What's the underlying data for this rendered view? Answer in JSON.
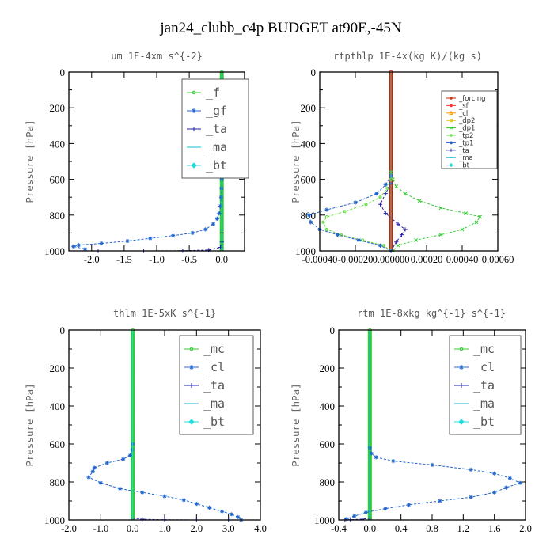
{
  "figure": {
    "title": "jan24_clubb_c4p  BUDGET at90E,-45N"
  },
  "colors": {
    "green": "#33cc33",
    "blue": "#2266cc",
    "darkblue": "#2222aa",
    "cyan": "#11bbcc",
    "aqua": "#22dddd",
    "red": "#cc2200",
    "orange": "#ff9900",
    "yellow": "#ddbb00"
  },
  "chart_data": [
    {
      "type": "line",
      "title": "um  1E-4xm s^{-2}",
      "ylabel": "Pressure [hPa]",
      "ylim": [
        1000,
        0
      ],
      "xlim": [
        -2.35,
        0.35
      ],
      "yticks": [
        "0",
        "200",
        "400",
        "600",
        "800",
        "1000"
      ],
      "xticks": [
        "-2.0",
        "-1.5",
        "-1.0",
        "-0.5",
        "0.0"
      ],
      "xtick_values": [
        -2.0,
        -1.5,
        -1.0,
        -0.5,
        0.0
      ],
      "legend_position": "top-right",
      "legend": [
        "_f",
        "_gf",
        "_ta",
        "_ma",
        "_bt"
      ],
      "series": [
        {
          "name": "_f",
          "color": "#33cc33",
          "marker": "circle",
          "x": [
            0,
            0,
            0,
            0,
            0,
            0,
            0,
            0,
            0,
            0,
            0
          ],
          "y": [
            0,
            100,
            200,
            300,
            400,
            500,
            600,
            700,
            800,
            900,
            1000
          ]
        },
        {
          "name": "_gf",
          "color": "#2266cc",
          "marker": "star",
          "x": [
            0,
            -0.005,
            -0.01,
            -0.02,
            -0.04,
            -0.07,
            -0.13,
            -0.25,
            -0.45,
            -0.75,
            -1.1,
            -1.45,
            -1.85,
            -2.2,
            -2.28,
            -2.1
          ],
          "y": [
            600,
            650,
            700,
            750,
            790,
            820,
            850,
            880,
            900,
            915,
            930,
            945,
            958,
            968,
            975,
            990
          ]
        },
        {
          "name": "_ta",
          "color": "#2222aa",
          "marker": "plus",
          "x": [
            0,
            0,
            -0.02,
            -0.2,
            -0.6,
            -1.2,
            -1.9
          ],
          "y": [
            900,
            950,
            980,
            995,
            999,
            1000,
            1000
          ]
        },
        {
          "name": "_ma",
          "color": "#11bbcc",
          "marker": "dash",
          "x": [
            0,
            0,
            0
          ],
          "y": [
            900,
            950,
            1000
          ]
        },
        {
          "name": "_bt",
          "color": "#22dddd",
          "marker": "diamond",
          "x": [
            0,
            0,
            0,
            0,
            0,
            0
          ],
          "y": [
            0,
            200,
            400,
            600,
            800,
            1000
          ]
        }
      ]
    },
    {
      "type": "line",
      "title": "rtpthlp  1E-4x(kg K)/(kg s)",
      "ylabel": "Pressure [hPa]",
      "ylim": [
        1000,
        0
      ],
      "xlim": [
        -0.0004,
        0.0006
      ],
      "yticks": [
        "0",
        "200",
        "400",
        "600",
        "800",
        "1000"
      ],
      "xticks": [
        "-0.00040",
        "-0.00020",
        "0.000000",
        "0.00020",
        "0.00040",
        "0.00060"
      ],
      "xtick_values": [
        -0.0004,
        -0.0002,
        0.0,
        0.0002,
        0.0004,
        0.0006
      ],
      "legend_position": "top-right",
      "legend": [
        "_forcing",
        "_sf",
        "_cl",
        "_dp2",
        "_dp1",
        "_tp2",
        "_tp1",
        "_ta",
        "_ma",
        "_bt"
      ],
      "series": [
        {
          "name": "_forcing",
          "color": "#cc2200",
          "marker": "circle",
          "x": [
            0,
            0,
            0,
            0,
            0,
            0,
            0,
            0,
            0,
            0,
            0
          ],
          "y": [
            0,
            100,
            200,
            300,
            400,
            500,
            600,
            700,
            800,
            900,
            1000
          ]
        },
        {
          "name": "_sf",
          "color": "#ff3333",
          "marker": "star",
          "x": [
            0,
            0
          ],
          "y": [
            0,
            1000
          ]
        },
        {
          "name": "_cl",
          "color": "#ff9900",
          "marker": "triangle",
          "x": [
            0,
            0
          ],
          "y": [
            0,
            1000
          ]
        },
        {
          "name": "_dp2",
          "color": "#ddbb00",
          "marker": "square",
          "x": [
            0,
            0
          ],
          "y": [
            0,
            1000
          ]
        },
        {
          "name": "_dp1",
          "color": "#33cc33",
          "marker": "x",
          "x": [
            0,
            1e-05,
            3e-05,
            8e-05,
            0.00016,
            0.00028,
            0.00042,
            0.0005,
            0.00048,
            0.0004,
            0.00028,
            0.00014,
            4e-05,
            1e-05
          ],
          "y": [
            560,
            600,
            640,
            680,
            720,
            760,
            790,
            810,
            840,
            880,
            910,
            940,
            970,
            1000
          ]
        },
        {
          "name": "_tp2",
          "color": "#66dd44",
          "marker": "circle",
          "x": [
            0,
            -2e-05,
            -6e-05,
            -0.00014,
            -0.00026,
            -0.00036,
            -0.00038,
            -0.00036,
            -0.00028,
            -0.00016,
            -4e-05,
            0
          ],
          "y": [
            600,
            650,
            700,
            740,
            780,
            810,
            840,
            880,
            910,
            940,
            970,
            1000
          ]
        },
        {
          "name": "_tp1",
          "color": "#2266cc",
          "marker": "star",
          "x": [
            0,
            -3e-05,
            -8e-05,
            -0.0002,
            -0.00036,
            -0.00046,
            -0.00045,
            -0.0004,
            -0.0003,
            -0.00018,
            -6e-05,
            0
          ],
          "y": [
            580,
            630,
            680,
            730,
            770,
            800,
            840,
            880,
            910,
            940,
            970,
            1000
          ]
        },
        {
          "name": "_ta",
          "color": "#2222aa",
          "marker": "plus",
          "x": [
            0,
            -3e-05,
            -6e-05,
            -3e-05,
            4e-05,
            8e-05,
            6e-05,
            3e-05,
            0
          ],
          "y": [
            620,
            680,
            740,
            790,
            850,
            880,
            910,
            950,
            1000
          ]
        },
        {
          "name": "_ma",
          "color": "#11bbcc",
          "marker": "dash",
          "x": [
            0,
            0
          ],
          "y": [
            0,
            1000
          ]
        },
        {
          "name": "_bt",
          "color": "#22dddd",
          "marker": "diamond",
          "x": [
            0,
            0
          ],
          "y": [
            0,
            1000
          ]
        }
      ]
    },
    {
      "type": "line",
      "title": "thlm  1E-5xK s^{-1}",
      "ylabel": "Pressure [hPa]",
      "ylim": [
        1000,
        0
      ],
      "xlim": [
        -2.0,
        4.0
      ],
      "yticks": [
        "0",
        "200",
        "400",
        "600",
        "800",
        "1000"
      ],
      "xticks": [
        "-2.0",
        "-1.0",
        "0.0",
        "1.0",
        "2.0",
        "3.0",
        "4.0"
      ],
      "xtick_values": [
        -2.0,
        -1.0,
        0.0,
        1.0,
        2.0,
        3.0,
        4.0
      ],
      "legend_position": "top-right",
      "legend": [
        "_mc",
        "_cl",
        "_ta",
        "_ma",
        "_bt"
      ],
      "series": [
        {
          "name": "_mc",
          "color": "#33cc33",
          "marker": "circle",
          "x": [
            0,
            0,
            0,
            0,
            0,
            0,
            0,
            0,
            0,
            0,
            0
          ],
          "y": [
            0,
            100,
            200,
            300,
            400,
            500,
            600,
            700,
            800,
            900,
            1000
          ]
        },
        {
          "name": "_cl",
          "color": "#2266cc",
          "marker": "star",
          "x": [
            0,
            -0.02,
            -0.08,
            -0.3,
            -0.8,
            -1.2,
            -1.25,
            -1.38,
            -1.0,
            -0.4,
            0.3,
            1.0,
            1.6,
            2.0,
            2.4,
            2.8,
            3.1,
            3.3,
            3.4
          ],
          "y": [
            600,
            630,
            660,
            680,
            700,
            725,
            745,
            775,
            805,
            835,
            855,
            875,
            895,
            915,
            935,
            955,
            970,
            985,
            1000
          ]
        },
        {
          "name": "_ta",
          "color": "#2222aa",
          "marker": "plus",
          "x": [
            0,
            0.3,
            1.0,
            2.0,
            3.0
          ],
          "y": [
            990,
            996,
            999,
            1000,
            1000
          ]
        },
        {
          "name": "_ma",
          "color": "#11bbcc",
          "marker": "dash",
          "x": [
            0,
            0
          ],
          "y": [
            0,
            1000
          ]
        },
        {
          "name": "_bt",
          "color": "#22dddd",
          "marker": "diamond",
          "x": [
            0,
            0,
            0,
            0,
            0,
            0
          ],
          "y": [
            0,
            200,
            400,
            600,
            800,
            1000
          ]
        }
      ]
    },
    {
      "type": "line",
      "title": "rtm  1E-8xkg kg^{-1} s^{-1}",
      "ylabel": "Pressure [hPa]",
      "ylim": [
        1000,
        0
      ],
      "xlim": [
        -0.4,
        2.0
      ],
      "yticks": [
        "0",
        "200",
        "400",
        "600",
        "800",
        "1000"
      ],
      "xticks": [
        "-0.4",
        "0.0",
        "0.4",
        "0.8",
        "1.2",
        "1.6",
        "2.0"
      ],
      "xtick_values": [
        -0.4,
        0.0,
        0.4,
        0.8,
        1.2,
        1.6,
        2.0
      ],
      "legend_position": "top-right",
      "legend": [
        "_mc",
        "_cl",
        "_ta",
        "_ma",
        "_bt"
      ],
      "series": [
        {
          "name": "_mc",
          "color": "#33cc33",
          "marker": "circle",
          "x": [
            0,
            0,
            0,
            0,
            0,
            0,
            0,
            0,
            0,
            0,
            0
          ],
          "y": [
            0,
            100,
            200,
            300,
            400,
            500,
            600,
            700,
            800,
            900,
            1000
          ]
        },
        {
          "name": "_cl",
          "color": "#2266cc",
          "marker": "star",
          "x": [
            0,
            0.02,
            0.08,
            0.3,
            0.8,
            1.3,
            1.6,
            1.8,
            1.93,
            1.75,
            1.6,
            1.3,
            0.9,
            0.5,
            0.2,
            -0.05,
            -0.2,
            -0.3
          ],
          "y": [
            620,
            650,
            670,
            690,
            710,
            735,
            755,
            780,
            805,
            830,
            855,
            880,
            900,
            920,
            940,
            960,
            980,
            995
          ]
        },
        {
          "name": "_ta",
          "color": "#2222aa",
          "marker": "plus",
          "x": [
            0,
            -0.1,
            -0.25,
            -0.32
          ],
          "y": [
            990,
            996,
            999,
            1000
          ]
        },
        {
          "name": "_ma",
          "color": "#11bbcc",
          "marker": "dash",
          "x": [
            0,
            0
          ],
          "y": [
            0,
            1000
          ]
        },
        {
          "name": "_bt",
          "color": "#22dddd",
          "marker": "diamond",
          "x": [
            0,
            0,
            0,
            0,
            0,
            0
          ],
          "y": [
            0,
            200,
            400,
            600,
            800,
            1000
          ]
        }
      ]
    }
  ]
}
